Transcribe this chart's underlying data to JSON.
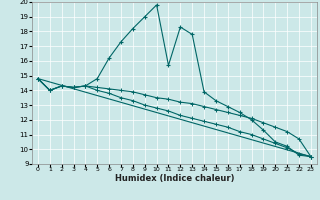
{
  "xlabel": "Humidex (Indice chaleur)",
  "xlim": [
    -0.5,
    23.5
  ],
  "ylim": [
    9,
    20
  ],
  "yticks": [
    9,
    10,
    11,
    12,
    13,
    14,
    15,
    16,
    17,
    18,
    19,
    20
  ],
  "xticks": [
    0,
    1,
    2,
    3,
    4,
    5,
    6,
    7,
    8,
    9,
    10,
    11,
    12,
    13,
    14,
    15,
    16,
    17,
    18,
    19,
    20,
    21,
    22,
    23
  ],
  "bg_color": "#cce8e8",
  "line_color": "#006666",
  "line1_x": [
    0,
    1,
    2,
    3,
    4,
    5,
    6,
    7,
    8,
    9,
    10,
    11,
    12,
    13,
    14,
    15,
    16,
    17,
    18,
    19,
    20,
    21,
    22,
    23
  ],
  "line1_y": [
    14.8,
    14.0,
    14.3,
    14.2,
    14.3,
    14.8,
    16.2,
    17.3,
    18.2,
    19.0,
    19.8,
    15.7,
    18.3,
    17.8,
    13.9,
    13.3,
    12.9,
    12.5,
    12.0,
    11.3,
    10.5,
    10.2,
    9.6,
    9.5
  ],
  "line2_x": [
    0,
    1,
    2,
    3,
    4,
    5,
    6,
    7,
    8,
    9,
    10,
    11,
    12,
    13,
    14,
    15,
    16,
    17,
    18,
    19,
    20,
    21,
    22,
    23
  ],
  "line2_y": [
    14.8,
    14.0,
    14.3,
    14.2,
    14.3,
    14.2,
    14.1,
    14.0,
    13.9,
    13.7,
    13.5,
    13.4,
    13.2,
    13.1,
    12.9,
    12.7,
    12.5,
    12.3,
    12.1,
    11.8,
    11.5,
    11.2,
    10.7,
    9.5
  ],
  "line3_x": [
    0,
    1,
    2,
    3,
    4,
    5,
    6,
    7,
    8,
    9,
    10,
    11,
    12,
    13,
    14,
    15,
    16,
    17,
    18,
    19,
    20,
    21,
    22,
    23
  ],
  "line3_y": [
    14.8,
    14.0,
    14.3,
    14.2,
    14.3,
    14.0,
    13.8,
    13.5,
    13.3,
    13.0,
    12.8,
    12.6,
    12.3,
    12.1,
    11.9,
    11.7,
    11.5,
    11.2,
    11.0,
    10.7,
    10.4,
    10.1,
    9.7,
    9.5
  ],
  "line4_x": [
    0,
    23
  ],
  "line4_y": [
    14.8,
    9.5
  ]
}
